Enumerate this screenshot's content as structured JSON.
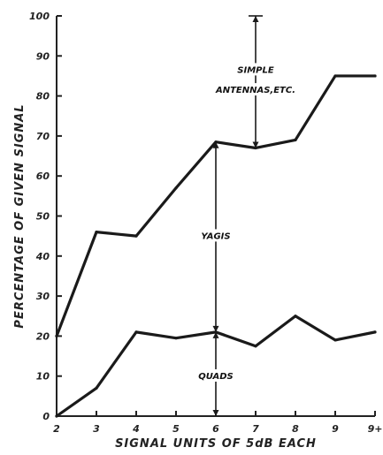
{
  "chart_data": {
    "type": "line",
    "categories": [
      "2",
      "3",
      "4",
      "5",
      "6",
      "7",
      "8",
      "9",
      "9+"
    ],
    "ylabel": "PERCENTAGE OF GIVEN SIGNAL",
    "xlabel": "SIGNAL UNITS OF 5dB EACH",
    "ylim": [
      0,
      100
    ],
    "yticks": [
      0,
      10,
      20,
      30,
      40,
      50,
      60,
      70,
      80,
      90,
      100
    ],
    "grid": false,
    "series": [
      {
        "values": [
          20,
          46,
          45,
          57,
          68.5,
          67,
          69,
          85,
          85
        ]
      },
      {
        "values": [
          0,
          7,
          21,
          19.5,
          21,
          17.5,
          25,
          19,
          21
        ]
      }
    ],
    "annotations": [
      {
        "text": "SIMPLE",
        "x": "7",
        "y": 86
      },
      {
        "text": "ANTENNAS,ETC.",
        "x": "7",
        "y": 81
      },
      {
        "text": "YAGIS",
        "x": "6",
        "y": 44.5
      },
      {
        "text": "QUADS",
        "x": "6",
        "y": 9.5
      }
    ],
    "arrows": [
      {
        "x": "7",
        "from": 100,
        "to": 67
      },
      {
        "x": "6",
        "from": 68.5,
        "to": 21
      },
      {
        "x": "6",
        "from": 21,
        "to": 0
      }
    ]
  }
}
